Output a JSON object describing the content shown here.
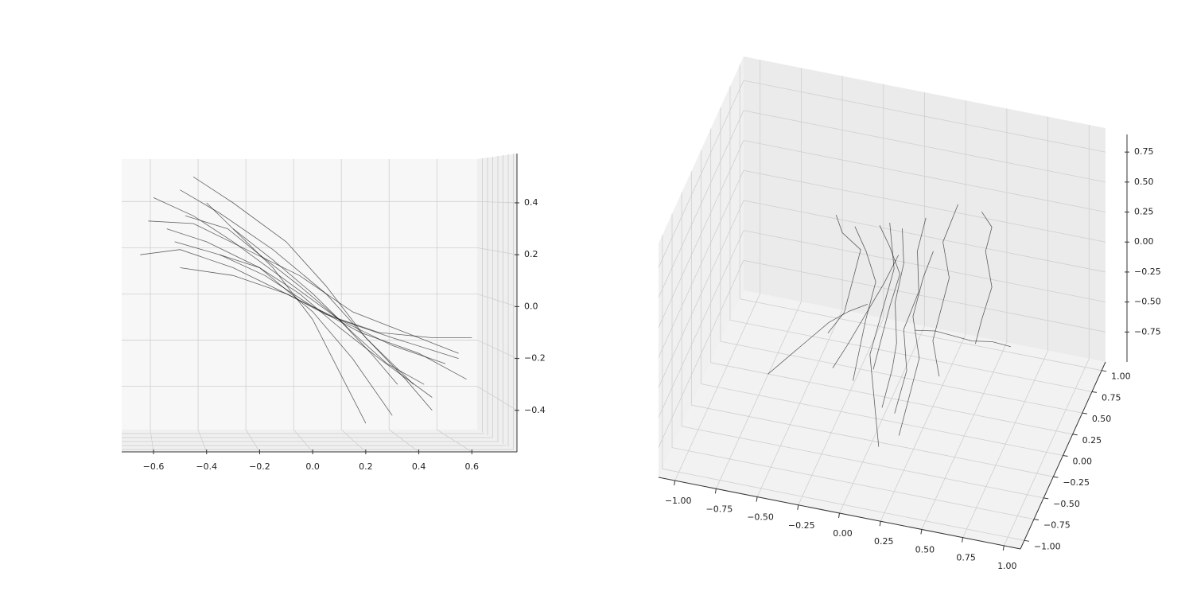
{
  "chart_data": [
    {
      "type": "line3d-front",
      "color": "#000000",
      "xlim": [
        -0.72,
        0.77
      ],
      "zlim": [
        -0.56,
        0.59
      ],
      "xticks": [
        {
          "value": -0.6,
          "label": "−0.6"
        },
        {
          "value": -0.4,
          "label": "−0.4"
        },
        {
          "value": -0.2,
          "label": "−0.2"
        },
        {
          "value": 0.0,
          "label": "0.0"
        },
        0.2,
        0.4,
        0.6
      ],
      "zticks": [
        {
          "value": -0.4,
          "label": "−0.4"
        },
        {
          "value": -0.2,
          "label": "−0.2"
        },
        {
          "value": 0.0,
          "label": "0.0"
        },
        0.2,
        0.4
      ],
      "series": [
        {
          "x": [
            -0.6,
            -0.45,
            -0.3,
            -0.1,
            0.1,
            0.3,
            0.5
          ],
          "z": [
            0.42,
            0.35,
            0.25,
            0.1,
            -0.05,
            -0.15,
            -0.22
          ]
        },
        {
          "x": [
            -0.5,
            -0.35,
            -0.15,
            0.05,
            0.2,
            0.35,
            0.45
          ],
          "z": [
            0.45,
            0.36,
            0.22,
            0.05,
            -0.12,
            -0.28,
            -0.4
          ]
        },
        {
          "x": [
            -0.65,
            -0.5,
            -0.3,
            -0.1,
            0.05,
            0.25,
            0.45,
            0.6
          ],
          "z": [
            0.2,
            0.22,
            0.15,
            0.05,
            -0.03,
            -0.1,
            -0.12,
            -0.12
          ]
        },
        {
          "x": [
            -0.55,
            -0.4,
            -0.2,
            0,
            0.15,
            0.3
          ],
          "z": [
            0.3,
            0.25,
            0.15,
            -0.02,
            -0.2,
            -0.42
          ]
        },
        {
          "x": [
            -0.4,
            -0.3,
            -0.15,
            0,
            0.1,
            0.2
          ],
          "z": [
            0.4,
            0.3,
            0.15,
            -0.05,
            -0.25,
            -0.45
          ]
        },
        {
          "x": [
            -0.5,
            -0.3,
            -0.1,
            0.1,
            0.3,
            0.55
          ],
          "z": [
            0.15,
            0.12,
            0.05,
            -0.05,
            -0.12,
            -0.2
          ]
        },
        {
          "x": [
            -0.45,
            -0.3,
            -0.1,
            0.05,
            0.2,
            0.38
          ],
          "z": [
            0.5,
            0.4,
            0.25,
            0.08,
            -0.12,
            -0.3
          ]
        },
        {
          "x": [
            -0.62,
            -0.45,
            -0.25,
            -0.05,
            0.15,
            0.35,
            0.55
          ],
          "z": [
            0.33,
            0.32,
            0.22,
            0.12,
            -0.02,
            -0.1,
            -0.18
          ]
        },
        {
          "x": [
            -0.35,
            -0.2,
            -0.05,
            0.1,
            0.25,
            0.45
          ],
          "z": [
            0.2,
            0.15,
            0.05,
            -0.08,
            -0.2,
            -0.35
          ]
        },
        {
          "x": [
            -0.52,
            -0.35,
            -0.18,
            0,
            0.18,
            0.4,
            0.58
          ],
          "z": [
            0.25,
            0.2,
            0.12,
            0.0,
            -0.1,
            -0.18,
            -0.28
          ]
        },
        {
          "x": [
            -0.48,
            -0.32,
            -0.2,
            -0.05,
            0.1,
            0.22,
            0.32
          ],
          "z": [
            0.35,
            0.3,
            0.2,
            0.08,
            -0.05,
            -0.18,
            -0.3
          ]
        },
        {
          "x": [
            -0.3,
            -0.15,
            0.0,
            0.15,
            0.28,
            0.42
          ],
          "z": [
            0.3,
            0.18,
            0.05,
            -0.1,
            -0.22,
            -0.3
          ]
        }
      ]
    },
    {
      "type": "line3d",
      "color": "#000000",
      "xlim": [
        -1.1,
        1.1
      ],
      "ylim": [
        -1.1,
        1.1
      ],
      "zlim": [
        -1.0,
        0.95
      ],
      "xticks": [
        {
          "value": -1.0,
          "label": "−1.00"
        },
        {
          "value": -0.75,
          "label": "−0.75"
        },
        {
          "value": -0.5,
          "label": "−0.50"
        },
        {
          "value": -0.25,
          "label": "−0.25"
        },
        {
          "value": 0.0,
          "label": "0.00"
        },
        {
          "value": 0.25,
          "label": "0.25"
        },
        {
          "value": 0.5,
          "label": "0.50"
        },
        {
          "value": 0.75,
          "label": "0.75"
        },
        {
          "value": 1.0,
          "label": "1.00"
        }
      ],
      "yticks": [
        {
          "value": -1.0,
          "label": "−1.00"
        },
        {
          "value": -0.75,
          "label": "−0.75"
        },
        {
          "value": -0.5,
          "label": "−0.50"
        },
        {
          "value": -0.25,
          "label": "−0.25"
        },
        {
          "value": 0.0,
          "label": "0.00"
        },
        {
          "value": 0.25,
          "label": "0.25"
        },
        {
          "value": 0.5,
          "label": "0.50"
        },
        {
          "value": 0.75,
          "label": "0.75"
        },
        {
          "value": 1.0,
          "label": "1.00"
        }
      ],
      "zticks": [
        {
          "value": -0.75,
          "label": "−0.75"
        },
        {
          "value": -0.5,
          "label": "−0.50"
        },
        {
          "value": -0.25,
          "label": "−0.25"
        },
        {
          "value": 0.0,
          "label": "0.00"
        },
        {
          "value": 0.25,
          "label": "0.25"
        },
        {
          "value": 0.5,
          "label": "0.50"
        },
        {
          "value": 0.75,
          "label": "0.75"
        }
      ],
      "series": [
        {
          "x": [
            0.0,
            0.05,
            0.1,
            0.08,
            0.12,
            0.1
          ],
          "y": [
            0.0,
            0.05,
            -0.05,
            0.0,
            0.05,
            0.1
          ],
          "z": [
            -0.9,
            -0.6,
            -0.3,
            0.0,
            0.3,
            0.55
          ]
        },
        {
          "x": [
            0.1,
            0.15,
            0.12,
            0.2,
            0.18,
            0.22
          ],
          "y": [
            -0.1,
            0.0,
            0.05,
            0.1,
            0.15,
            0.2
          ],
          "z": [
            -0.85,
            -0.55,
            -0.25,
            0.05,
            0.35,
            0.6
          ]
        },
        {
          "x": [
            -0.2,
            -0.15,
            -0.1,
            -0.05,
            -0.12,
            -0.2
          ],
          "y": [
            0.1,
            0.05,
            0.0,
            0.05,
            0.1,
            0.15
          ],
          "z": [
            -0.8,
            -0.5,
            -0.2,
            0.1,
            0.3,
            0.45
          ]
        },
        {
          "x": [
            0.3,
            0.25,
            0.3,
            0.35,
            0.3,
            0.38
          ],
          "y": [
            0.2,
            0.25,
            0.3,
            0.25,
            0.3,
            0.35
          ],
          "z": [
            -0.7,
            -0.45,
            -0.15,
            0.1,
            0.35,
            0.65
          ]
        },
        {
          "x": [
            -0.4,
            -0.3,
            -0.25,
            -0.2,
            -0.3,
            -0.35
          ],
          "y": [
            0.3,
            0.3,
            0.35,
            0.3,
            0.25,
            0.3
          ],
          "z": [
            -0.6,
            -0.4,
            -0.1,
            0.15,
            0.3,
            0.4
          ]
        },
        {
          "x": [
            0.05,
            0.0,
            -0.05,
            0.0,
            0.05,
            0.0
          ],
          "y": [
            -0.3,
            -0.2,
            -0.1,
            0.0,
            0.1,
            0.2
          ],
          "z": [
            -1.0,
            -0.7,
            -0.4,
            -0.1,
            0.2,
            0.5
          ]
        },
        {
          "x": [
            0.45,
            0.5,
            0.55,
            0.5,
            0.55,
            0.5
          ],
          "y": [
            0.5,
            0.45,
            0.5,
            0.55,
            0.5,
            0.45
          ],
          "z": [
            -0.6,
            -0.35,
            -0.1,
            0.15,
            0.4,
            0.55
          ]
        },
        {
          "x": [
            -0.6,
            -0.5,
            -0.4,
            -0.3,
            -0.2,
            -0.1
          ],
          "y": [
            -0.4,
            -0.3,
            -0.2,
            -0.1,
            0.0,
            0.05
          ],
          "z": [
            -0.5,
            -0.4,
            -0.3,
            -0.2,
            -0.15,
            -0.1
          ]
        },
        {
          "x": [
            0.2,
            0.3,
            0.4,
            0.5,
            0.6,
            0.7
          ],
          "y": [
            0.0,
            0.1,
            0.15,
            0.2,
            0.3,
            0.35
          ],
          "z": [
            -0.2,
            -0.25,
            -0.3,
            -0.35,
            -0.4,
            -0.45
          ]
        },
        {
          "x": [
            -0.1,
            -0.05,
            0.0,
            0.05,
            0.0,
            -0.05
          ],
          "y": [
            0.2,
            0.15,
            0.2,
            0.25,
            0.2,
            0.15
          ],
          "z": [
            -0.75,
            -0.5,
            -0.2,
            0.05,
            0.3,
            0.5
          ]
        },
        {
          "x": [
            0.15,
            0.2,
            0.25,
            0.2,
            0.25,
            0.3
          ],
          "y": [
            -0.2,
            -0.15,
            -0.1,
            -0.05,
            0.0,
            0.05
          ],
          "z": [
            -0.95,
            -0.65,
            -0.35,
            -0.05,
            0.25,
            0.45
          ]
        },
        {
          "x": [
            -0.3,
            -0.2,
            -0.1,
            0.0,
            0.1
          ],
          "y": [
            0.0,
            -0.05,
            0.0,
            0.05,
            0.0
          ],
          "z": [
            -0.65,
            -0.4,
            -0.15,
            0.1,
            0.4
          ]
        }
      ]
    }
  ]
}
